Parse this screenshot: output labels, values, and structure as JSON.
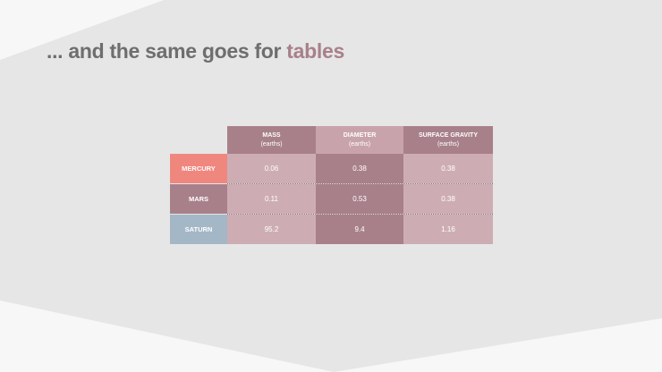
{
  "slide": {
    "title_prefix": "... and the same goes for",
    "title_accent": "tables"
  },
  "table": {
    "columns": [
      {
        "label": "MASS",
        "unit": "(earths)"
      },
      {
        "label": "DIAMETER",
        "unit": "(earths)"
      },
      {
        "label": "SURFACE GRAVITY",
        "unit": "(earths)"
      }
    ],
    "rows": [
      {
        "label": "MERCURY",
        "color": "#f0877f",
        "values": [
          "0.06",
          "0.38",
          "0.38"
        ]
      },
      {
        "label": "MARS",
        "color": "#a8808a",
        "values": [
          "0.11",
          "0.53",
          "0.38"
        ]
      },
      {
        "label": "SATURN",
        "color": "#a3b7c7",
        "values": [
          "95.2",
          "9.4",
          "1.16"
        ]
      }
    ]
  },
  "colors": {
    "accent": "#a8808a",
    "title_gray": "#6e6e6e",
    "background_shape": "#e6e6e6"
  }
}
